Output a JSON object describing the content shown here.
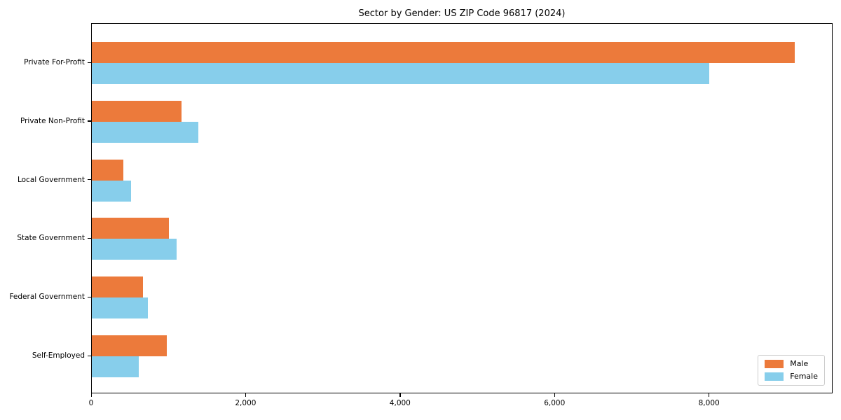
{
  "chart_data": {
    "type": "bar",
    "orientation": "horizontal",
    "title": "Sector by Gender: US ZIP Code 96817 (2024)",
    "categories": [
      "Private For-Profit",
      "Private Non-Profit",
      "Local Government",
      "State Government",
      "Federal Government",
      "Self-Employed"
    ],
    "series": [
      {
        "name": "Male",
        "color": "#EC7A3B",
        "values": [
          9120,
          1160,
          410,
          1000,
          660,
          970
        ]
      },
      {
        "name": "Female",
        "color": "#87CEEB",
        "values": [
          8010,
          1380,
          510,
          1100,
          730,
          610
        ]
      }
    ],
    "xlabel": "",
    "ylabel": "",
    "xlim": [
      0,
      9600
    ],
    "x_ticks": [
      0,
      2000,
      4000,
      6000,
      8000
    ],
    "x_tick_labels": [
      "0",
      "2,000",
      "4,000",
      "6,000",
      "8,000"
    ],
    "legend_position": "lower right",
    "grid": false,
    "background_color": "#ffffff",
    "spine_color": "#000000"
  }
}
